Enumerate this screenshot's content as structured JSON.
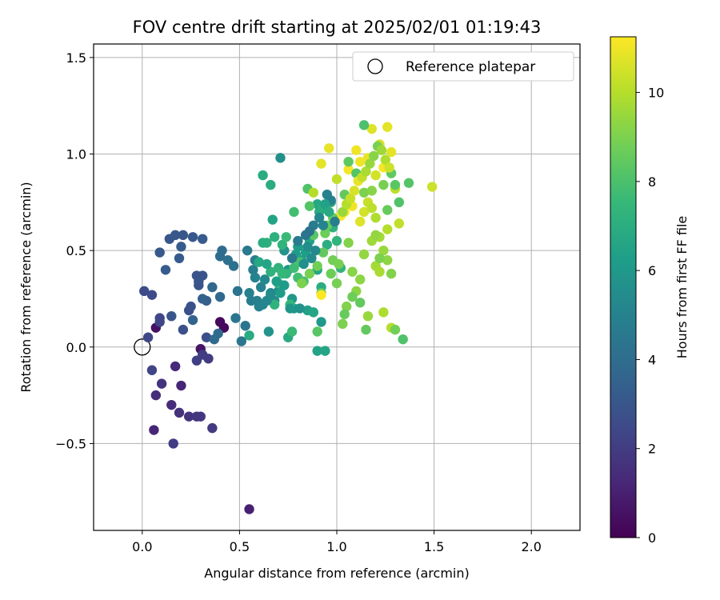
{
  "chart_data": {
    "type": "scatter",
    "title": "FOV centre drift starting at 2025/02/01 01:19:43",
    "xlabel": "Angular distance from reference (arcmin)",
    "ylabel": "Rotation from reference (arcmin)",
    "xlim": [
      -0.25,
      2.25
    ],
    "ylim": [
      -0.95,
      1.57
    ],
    "xticks": [
      0.0,
      0.5,
      1.0,
      1.5,
      2.0
    ],
    "xtick_labels": [
      "0.0",
      "0.5",
      "1.0",
      "1.5",
      "2.0"
    ],
    "yticks": [
      -0.5,
      0.0,
      0.5,
      1.0,
      1.5
    ],
    "ytick_labels": [
      "−0.5",
      "0.0",
      "0.5",
      "1.0",
      "1.5"
    ],
    "grid": true,
    "legend": {
      "placement": "top-right",
      "entries": [
        {
          "label": "Reference platepar",
          "marker": "open-circle"
        }
      ]
    },
    "reference_point": {
      "x": 0.0,
      "y": 0.0
    },
    "colorbar": {
      "label": "Hours from first FF file",
      "range": [
        0,
        11.25
      ],
      "ticks": [
        0,
        2,
        4,
        6,
        8,
        10
      ],
      "tick_labels": [
        "0",
        "2",
        "4",
        "6",
        "8",
        "10"
      ],
      "colormap": [
        "#440154",
        "#482878",
        "#3e4a89",
        "#31688e",
        "#26828e",
        "#1f9e89",
        "#35b779",
        "#6ece58",
        "#b5de2b",
        "#fde725"
      ]
    },
    "points": [
      [
        0.4,
        0.13,
        0.3
      ],
      [
        0.42,
        0.1,
        0.3
      ],
      [
        0.07,
        0.1,
        0.5
      ],
      [
        0.3,
        -0.01,
        0.6
      ],
      [
        0.55,
        -0.84,
        1.0
      ],
      [
        0.17,
        -0.1,
        1.3
      ],
      [
        0.2,
        -0.2,
        1.2
      ],
      [
        0.15,
        -0.3,
        1.4
      ],
      [
        0.06,
        -0.43,
        1.2
      ],
      [
        0.07,
        -0.25,
        1.4
      ],
      [
        0.1,
        -0.19,
        1.7
      ],
      [
        0.19,
        -0.34,
        1.6
      ],
      [
        0.24,
        -0.36,
        1.7
      ],
      [
        0.28,
        -0.36,
        1.8
      ],
      [
        0.3,
        -0.36,
        1.8
      ],
      [
        0.36,
        -0.42,
        1.9
      ],
      [
        0.16,
        -0.5,
        2.0
      ],
      [
        0.34,
        -0.06,
        2.0
      ],
      [
        0.31,
        -0.04,
        2.0
      ],
      [
        0.28,
        -0.07,
        2.1
      ],
      [
        0.05,
        -0.12,
        2.3
      ],
      [
        0.03,
        0.05,
        2.4
      ],
      [
        0.09,
        0.13,
        2.4
      ],
      [
        0.09,
        0.15,
        2.4
      ],
      [
        0.05,
        0.27,
        2.5
      ],
      [
        0.01,
        0.29,
        2.6
      ],
      [
        0.33,
        0.05,
        2.7
      ],
      [
        0.24,
        0.19,
        2.7
      ],
      [
        0.25,
        0.21,
        2.8
      ],
      [
        0.21,
        0.09,
        2.8
      ],
      [
        0.29,
        0.32,
        2.9
      ],
      [
        0.28,
        0.37,
        2.9
      ],
      [
        0.31,
        0.37,
        2.9
      ],
      [
        0.29,
        0.34,
        3.0
      ],
      [
        0.15,
        0.16,
        3.0
      ],
      [
        0.12,
        0.4,
        3.2
      ],
      [
        0.09,
        0.49,
        3.1
      ],
      [
        0.19,
        0.46,
        3.2
      ],
      [
        0.14,
        0.56,
        3.0
      ],
      [
        0.17,
        0.58,
        3.1
      ],
      [
        0.21,
        0.58,
        3.0
      ],
      [
        0.26,
        0.57,
        3.1
      ],
      [
        0.31,
        0.56,
        3.2
      ],
      [
        0.2,
        0.52,
        3.2
      ],
      [
        0.33,
        0.24,
        3.4
      ],
      [
        0.31,
        0.25,
        3.5
      ],
      [
        0.26,
        0.14,
        3.6
      ],
      [
        0.36,
        0.31,
        3.7
      ],
      [
        0.4,
        0.26,
        3.8
      ],
      [
        0.39,
        0.07,
        3.9
      ],
      [
        0.37,
        0.04,
        3.9
      ],
      [
        0.4,
        0.47,
        4.0
      ],
      [
        0.41,
        0.5,
        4.0
      ],
      [
        0.44,
        0.45,
        4.2
      ],
      [
        0.47,
        0.42,
        4.2
      ],
      [
        0.49,
        0.29,
        4.3
      ],
      [
        0.48,
        0.15,
        4.4
      ],
      [
        0.51,
        0.03,
        4.4
      ],
      [
        0.53,
        0.11,
        4.4
      ],
      [
        0.54,
        0.5,
        4.6
      ],
      [
        0.56,
        0.24,
        4.7
      ],
      [
        0.57,
        0.4,
        4.8
      ],
      [
        0.58,
        0.45,
        4.8
      ],
      [
        0.59,
        0.24,
        4.9
      ],
      [
        0.6,
        0.21,
        5.0
      ],
      [
        0.61,
        0.31,
        5.0
      ],
      [
        0.62,
        0.22,
        5.1
      ],
      [
        0.63,
        0.35,
        5.3
      ],
      [
        0.66,
        0.28,
        5.3
      ],
      [
        0.68,
        0.24,
        5.4
      ],
      [
        0.7,
        0.29,
        5.5
      ],
      [
        0.71,
        0.98,
        5.6
      ],
      [
        0.65,
        0.08,
        5.8
      ],
      [
        0.73,
        0.5,
        5.8
      ],
      [
        0.75,
        0.4,
        5.9
      ],
      [
        0.77,
        0.25,
        6.0
      ],
      [
        0.78,
        0.2,
        6.1
      ],
      [
        0.79,
        0.48,
        6.1
      ],
      [
        0.8,
        0.52,
        6.2
      ],
      [
        0.82,
        0.45,
        6.3
      ],
      [
        0.84,
        0.49,
        6.3
      ],
      [
        0.85,
        0.19,
        6.4
      ],
      [
        0.86,
        0.55,
        6.5
      ],
      [
        0.88,
        0.18,
        6.6
      ],
      [
        0.9,
        0.4,
        6.6
      ],
      [
        0.9,
        0.74,
        6.7
      ],
      [
        0.91,
        0.7,
        6.8
      ],
      [
        0.92,
        0.31,
        6.9
      ],
      [
        0.93,
        0.72,
        7.0
      ],
      [
        0.95,
        0.53,
        7.0
      ],
      [
        0.97,
        0.75,
        7.1
      ],
      [
        0.98,
        0.62,
        7.2
      ],
      [
        1.0,
        0.55,
        7.3
      ],
      [
        1.02,
        0.41,
        7.4
      ],
      [
        0.9,
        -0.02,
        6.5
      ],
      [
        0.94,
        -0.02,
        6.6
      ],
      [
        0.75,
        0.05,
        6.8
      ],
      [
        0.62,
        0.89,
        6.9
      ],
      [
        0.66,
        0.84,
        7.0
      ],
      [
        0.68,
        0.57,
        7.1
      ],
      [
        0.7,
        0.41,
        7.2
      ],
      [
        0.72,
        0.53,
        7.3
      ],
      [
        0.74,
        0.38,
        7.4
      ],
      [
        0.76,
        0.22,
        7.5
      ],
      [
        0.77,
        0.08,
        7.6
      ],
      [
        0.78,
        0.41,
        7.7
      ],
      [
        0.8,
        0.36,
        7.8
      ],
      [
        0.81,
        0.44,
        7.9
      ],
      [
        0.83,
        0.34,
        8.0
      ],
      [
        0.85,
        0.82,
        8.1
      ],
      [
        0.86,
        0.73,
        8.2
      ],
      [
        0.88,
        0.58,
        8.3
      ],
      [
        0.9,
        0.08,
        8.3
      ],
      [
        0.92,
        0.28,
        8.4
      ],
      [
        0.93,
        0.49,
        8.5
      ],
      [
        0.95,
        0.63,
        8.6
      ],
      [
        0.97,
        0.38,
        8.7
      ],
      [
        0.98,
        0.45,
        8.8
      ],
      [
        1.0,
        0.33,
        8.9
      ],
      [
        1.01,
        0.43,
        8.9
      ],
      [
        1.03,
        0.12,
        9.0
      ],
      [
        1.05,
        0.21,
        9.1
      ],
      [
        1.06,
        0.54,
        9.1
      ],
      [
        1.08,
        0.39,
        9.2
      ],
      [
        1.1,
        0.29,
        9.3
      ],
      [
        1.12,
        0.35,
        9.3
      ],
      [
        1.14,
        0.48,
        9.4
      ],
      [
        1.16,
        0.16,
        9.5
      ],
      [
        1.18,
        0.55,
        9.6
      ],
      [
        1.2,
        0.42,
        9.7
      ],
      [
        1.22,
        0.39,
        9.8
      ],
      [
        1.24,
        0.18,
        9.9
      ],
      [
        1.26,
        0.61,
        10.0
      ],
      [
        1.28,
        0.1,
        10.0
      ],
      [
        1.3,
        0.82,
        10.1
      ],
      [
        1.32,
        0.64,
        10.2
      ],
      [
        1.34,
        0.04,
        8.1
      ],
      [
        1.37,
        0.85,
        8.2
      ],
      [
        1.49,
        0.83,
        10.4
      ],
      [
        1.2,
        0.89,
        10.5
      ],
      [
        1.22,
        1.05,
        10.6
      ],
      [
        1.18,
        1.13,
        10.7
      ],
      [
        1.14,
        1.15,
        8.0
      ],
      [
        1.26,
        1.14,
        10.8
      ],
      [
        1.28,
        1.01,
        10.8
      ],
      [
        1.16,
        0.98,
        10.9
      ],
      [
        1.1,
        1.02,
        11.0
      ],
      [
        1.12,
        0.96,
        11.0
      ],
      [
        1.24,
        0.93,
        11.1
      ],
      [
        1.06,
        0.92,
        11.1
      ],
      [
        0.96,
        1.03,
        10.9
      ],
      [
        0.92,
        0.95,
        10.8
      ],
      [
        0.88,
        0.8,
        10.0
      ],
      [
        1.0,
        0.87,
        10.2
      ],
      [
        1.02,
        0.68,
        11.2
      ],
      [
        1.04,
        0.7,
        11.2
      ],
      [
        1.08,
        0.73,
        11.0
      ],
      [
        1.12,
        0.65,
        10.7
      ],
      [
        1.14,
        0.7,
        10.5
      ],
      [
        1.16,
        0.75,
        10.3
      ],
      [
        1.18,
        0.72,
        10.1
      ],
      [
        1.2,
        0.67,
        9.9
      ],
      [
        1.22,
        0.57,
        9.7
      ],
      [
        1.24,
        0.5,
        9.5
      ],
      [
        1.26,
        0.45,
        9.3
      ],
      [
        1.28,
        0.38,
        9.1
      ],
      [
        1.3,
        0.09,
        8.8
      ],
      [
        1.15,
        0.09,
        8.5
      ],
      [
        1.12,
        0.23,
        8.5
      ],
      [
        1.08,
        0.26,
        8.7
      ],
      [
        1.04,
        0.17,
        8.6
      ],
      [
        0.92,
        0.27,
        11.2
      ],
      [
        1.14,
        0.8,
        9.0
      ],
      [
        1.18,
        0.81,
        9.2
      ],
      [
        1.2,
        0.58,
        9.4
      ],
      [
        1.22,
        0.46,
        9.0
      ],
      [
        1.24,
        0.84,
        8.9
      ],
      [
        1.26,
        0.71,
        8.6
      ],
      [
        1.28,
        0.9,
        8.4
      ],
      [
        1.3,
        0.84,
        8.3
      ],
      [
        1.32,
        0.75,
        8.1
      ],
      [
        1.1,
        0.9,
        8.2
      ],
      [
        1.06,
        0.96,
        8.4
      ],
      [
        1.04,
        0.79,
        8.5
      ],
      [
        0.98,
        0.67,
        8.6
      ],
      [
        0.94,
        0.59,
        8.7
      ],
      [
        0.9,
        0.42,
        8.8
      ],
      [
        0.86,
        0.38,
        8.9
      ],
      [
        0.82,
        0.33,
        9.0
      ],
      [
        0.78,
        0.7,
        7.8
      ],
      [
        0.74,
        0.57,
        7.6
      ],
      [
        0.72,
        0.38,
        7.5
      ],
      [
        0.7,
        0.33,
        7.4
      ],
      [
        0.68,
        0.22,
        7.3
      ],
      [
        0.66,
        0.39,
        7.2
      ],
      [
        0.64,
        0.54,
        7.1
      ],
      [
        0.62,
        0.54,
        7.0
      ],
      [
        0.55,
        0.06,
        6.9
      ],
      [
        0.6,
        0.44,
        6.7
      ],
      [
        0.64,
        0.43,
        6.6
      ],
      [
        0.67,
        0.66,
        6.5
      ],
      [
        0.69,
        0.34,
        6.3
      ],
      [
        0.71,
        0.28,
        6.2
      ],
      [
        0.73,
        0.32,
        6.1
      ],
      [
        0.76,
        0.2,
        5.9
      ],
      [
        0.81,
        0.2,
        5.7
      ],
      [
        0.83,
        0.43,
        5.6
      ],
      [
        0.85,
        0.52,
        5.5
      ],
      [
        0.87,
        0.46,
        5.4
      ],
      [
        0.89,
        0.5,
        5.3
      ],
      [
        0.91,
        0.67,
        5.2
      ],
      [
        0.93,
        0.63,
        5.1
      ],
      [
        0.95,
        0.79,
        5.0
      ],
      [
        0.97,
        0.76,
        4.9
      ],
      [
        0.99,
        0.65,
        4.8
      ],
      [
        0.88,
        0.63,
        4.7
      ],
      [
        0.8,
        0.55,
        4.6
      ],
      [
        0.77,
        0.46,
        4.5
      ],
      [
        0.84,
        0.58,
        4.4
      ],
      [
        0.86,
        0.6,
        4.3
      ],
      [
        0.55,
        0.28,
        4.9
      ],
      [
        0.58,
        0.36,
        5.0
      ],
      [
        0.64,
        0.24,
        5.2
      ],
      [
        0.66,
        0.27,
        5.4
      ],
      [
        0.92,
        0.13,
        6.0
      ],
      [
        0.94,
        0.74,
        6.4
      ],
      [
        0.96,
        0.7,
        6.8
      ],
      [
        1.03,
        0.7,
        9.5
      ],
      [
        1.05,
        0.74,
        10.0
      ],
      [
        1.07,
        0.77,
        10.3
      ],
      [
        1.09,
        0.81,
        10.6
      ],
      [
        1.11,
        0.86,
        10.9
      ],
      [
        1.13,
        0.88,
        10.2
      ],
      [
        1.15,
        0.91,
        9.8
      ],
      [
        1.17,
        0.95,
        9.5
      ],
      [
        1.19,
        0.99,
        9.2
      ],
      [
        1.21,
        1.04,
        8.9
      ],
      [
        1.23,
        1.02,
        9.6
      ],
      [
        1.25,
        0.97,
        9.9
      ],
      [
        1.27,
        0.93,
        10.4
      ]
    ]
  }
}
